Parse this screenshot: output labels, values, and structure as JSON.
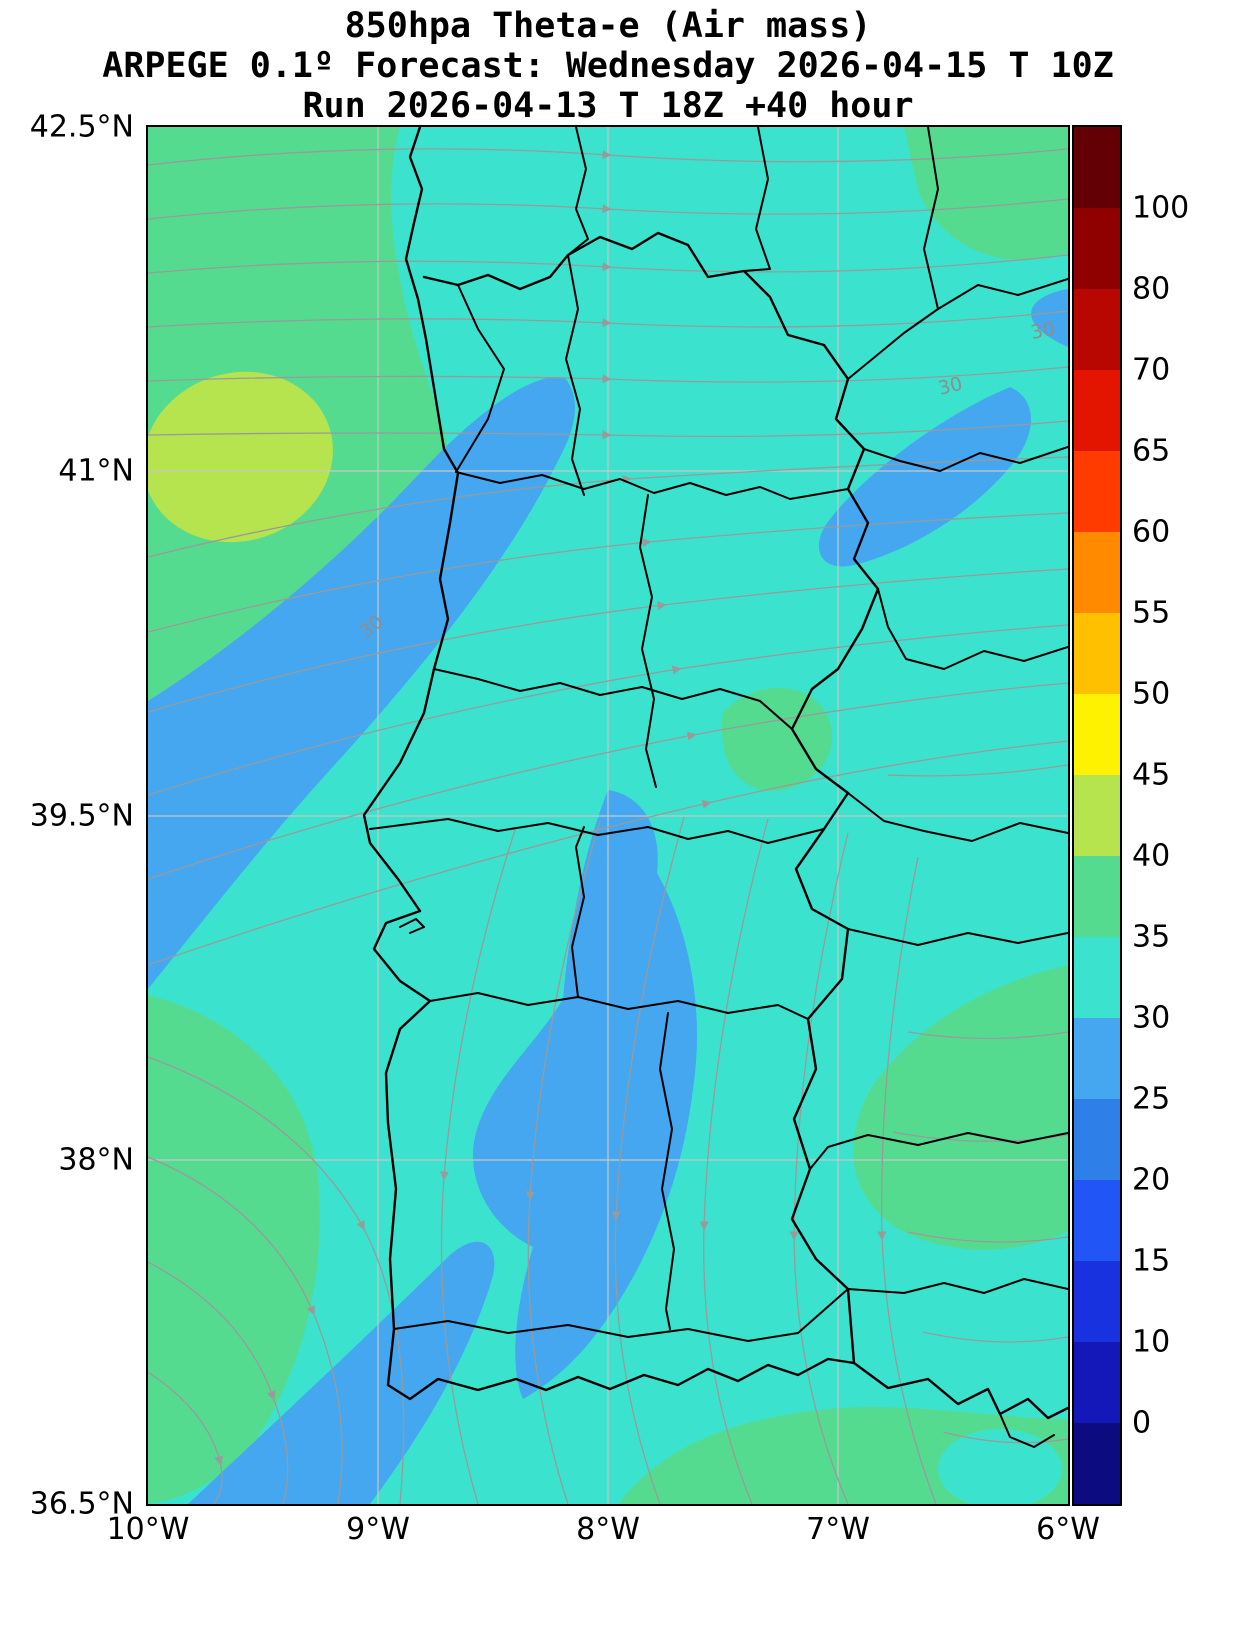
{
  "title": {
    "line1": "850hpa Theta-e (Air mass)",
    "line2": "ARPEGE 0.1º Forecast: Wednesday 2026-04-15 T 10Z",
    "line3": "Run 2026-04-13 T 18Z +40 hour"
  },
  "axes": {
    "y_tick_labels": [
      "42.5°N",
      "41°N",
      "39.5°N",
      "38°N",
      "36.5°N"
    ],
    "x_tick_labels": [
      "10°W",
      "9°W",
      "8°W",
      "7°W",
      "6°W"
    ]
  },
  "colorbar": {
    "tick_labels": [
      "100",
      "80",
      "70",
      "65",
      "60",
      "55",
      "50",
      "45",
      "40",
      "35",
      "30",
      "25",
      "20",
      "15",
      "10",
      "0"
    ],
    "segment_colors_top_to_bottom": [
      "#630006",
      "#8F0000",
      "#B80600",
      "#E31400",
      "#FF3B00",
      "#FF8A00",
      "#FFC000",
      "#FFF200",
      "#B5E44F",
      "#55DB90",
      "#3BE3CE",
      "#44A7F0",
      "#2E7FE8",
      "#2255F5",
      "#1832E0",
      "#1518B8",
      "#0C0C80"
    ]
  },
  "map": {
    "contour_labels": [
      "30",
      "30",
      "30"
    ],
    "colors": {
      "green_35_40": "#55DB90",
      "cyan_30_35": "#3BE3CE",
      "blue_25_30": "#44A7F0",
      "yellowgreen_40_45": "#B5E44F",
      "streamline": "#9A9A9A",
      "gridline": "#C8C8C8",
      "boundary": "#000000"
    }
  },
  "chart_data": {
    "type": "heatmap",
    "title": "850hpa Theta-e (Air mass)",
    "model": "ARPEGE 0.1º",
    "valid_time": "Wednesday 2026-04-15 T 10Z",
    "run_time": "Run 2026-04-13 T 18Z",
    "lead": "+40 hour",
    "levels": [
      0,
      10,
      15,
      20,
      25,
      30,
      35,
      40,
      45,
      50,
      55,
      60,
      65,
      70,
      80,
      100
    ],
    "x_ticks": [
      "10°W",
      "9°W",
      "8°W",
      "7°W",
      "6°W"
    ],
    "y_ticks": [
      "36.5°N",
      "38°N",
      "39.5°N",
      "41°N",
      "42.5°N"
    ],
    "legend_position": "right colorbar",
    "grid": true
  }
}
